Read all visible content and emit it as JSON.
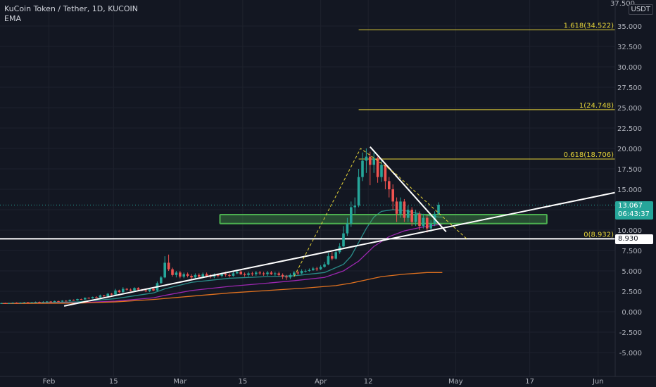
{
  "header": {
    "title": "KuCoin Token / Tether, 1D, KUCOIN",
    "indicator": "EMA",
    "currency": "USDT",
    "top_tick": "37.500"
  },
  "price_tag": {
    "price": "13.067",
    "countdown": "06:43:37"
  },
  "line_tag": "8.930",
  "colors": {
    "background": "#131722",
    "up": "#26a69a",
    "down": "#ef5350",
    "fib": "#e5d338",
    "trendline": "#ffffff",
    "zone": "#4caf50",
    "ema_fast": "#2a8d8a",
    "ema_mid": "#9c27b0",
    "ema_slow": "#e0711f"
  },
  "chart_data": {
    "type": "line",
    "title": "KuCoin Token / Tether, 1D, KUCOIN",
    "ylim": [
      -6.5,
      38
    ],
    "yticks": [
      "-5.000",
      "-2.500",
      "0.000",
      "2.500",
      "5.000",
      "7.500",
      "10.000",
      "12.500",
      "15.000",
      "17.500",
      "20.000",
      "22.500",
      "25.000",
      "27.500",
      "30.000",
      "32.500",
      "35.000"
    ],
    "xticks": [
      "Feb",
      "15",
      "Mar",
      "15",
      "Apr",
      "12",
      "May",
      "17",
      "Jun"
    ],
    "fib_levels": [
      {
        "label": "1.618(34.522)",
        "value": 34.522
      },
      {
        "label": "1(24.748)",
        "value": 24.748
      },
      {
        "label": "0.618(18.706)",
        "value": 18.706
      },
      {
        "label": "0(8.932)",
        "value": 8.932
      }
    ],
    "horizontal_line": 8.93,
    "zone": [
      10.8,
      11.9
    ],
    "last_price": 13.067,
    "candles": [
      [
        1.0,
        1.05,
        1.1,
        0.95
      ],
      [
        1.05,
        1.0,
        1.1,
        0.95
      ],
      [
        1.0,
        1.05,
        1.1,
        0.95
      ],
      [
        1.05,
        1.1,
        1.15,
        1.0
      ],
      [
        1.1,
        1.05,
        1.15,
        1.0
      ],
      [
        1.05,
        1.1,
        1.15,
        1.0
      ],
      [
        1.1,
        1.15,
        1.2,
        1.05
      ],
      [
        1.15,
        1.1,
        1.2,
        1.05
      ],
      [
        1.1,
        1.15,
        1.2,
        1.05
      ],
      [
        1.15,
        1.2,
        1.25,
        1.1
      ],
      [
        1.2,
        1.15,
        1.25,
        1.1
      ],
      [
        1.15,
        1.2,
        1.3,
        1.1
      ],
      [
        1.2,
        1.25,
        1.3,
        1.15
      ],
      [
        1.25,
        1.2,
        1.3,
        1.15
      ],
      [
        1.2,
        1.3,
        1.35,
        1.15
      ],
      [
        1.3,
        1.25,
        1.35,
        1.2
      ],
      [
        1.25,
        1.35,
        1.4,
        1.2
      ],
      [
        1.35,
        1.3,
        1.4,
        1.25
      ],
      [
        1.3,
        1.45,
        1.5,
        1.25
      ],
      [
        1.45,
        1.4,
        1.5,
        1.35
      ],
      [
        1.4,
        1.55,
        1.6,
        1.35
      ],
      [
        1.55,
        1.5,
        1.6,
        1.45
      ],
      [
        1.5,
        1.7,
        1.75,
        1.45
      ],
      [
        1.7,
        1.65,
        1.75,
        1.6
      ],
      [
        1.65,
        1.8,
        1.85,
        1.6
      ],
      [
        1.8,
        1.75,
        1.9,
        1.7
      ],
      [
        1.75,
        2.0,
        2.1,
        1.7
      ],
      [
        2.0,
        1.9,
        2.05,
        1.8
      ],
      [
        1.9,
        2.2,
        2.3,
        1.85
      ],
      [
        2.2,
        2.1,
        2.3,
        2.0
      ],
      [
        2.1,
        2.6,
        2.8,
        2.05
      ],
      [
        2.6,
        2.4,
        2.7,
        2.3
      ],
      [
        2.4,
        2.8,
        3.0,
        2.3
      ],
      [
        2.8,
        2.7,
        2.9,
        2.6
      ],
      [
        2.7,
        2.6,
        2.85,
        2.5
      ],
      [
        2.6,
        2.9,
        3.0,
        2.5
      ],
      [
        2.9,
        2.7,
        3.0,
        2.6
      ],
      [
        2.7,
        2.6,
        2.8,
        2.5
      ],
      [
        2.6,
        2.5,
        2.7,
        2.4
      ],
      [
        2.5,
        2.8,
        2.9,
        2.4
      ],
      [
        2.8,
        2.6,
        2.9,
        2.5
      ],
      [
        2.6,
        3.5,
        3.7,
        2.5
      ],
      [
        3.5,
        4.2,
        4.4,
        3.4
      ],
      [
        4.2,
        6.0,
        6.8,
        4.1
      ],
      [
        6.0,
        5.2,
        7.0,
        5.0
      ],
      [
        5.2,
        4.5,
        5.4,
        4.3
      ],
      [
        4.5,
        4.8,
        5.0,
        4.2
      ],
      [
        4.8,
        4.3,
        5.0,
        4.1
      ],
      [
        4.3,
        4.6,
        4.8,
        4.1
      ],
      [
        4.6,
        4.4,
        4.8,
        4.2
      ],
      [
        4.4,
        4.2,
        4.6,
        4.0
      ],
      [
        4.2,
        4.5,
        4.7,
        4.0
      ],
      [
        4.5,
        4.3,
        4.7,
        4.1
      ],
      [
        4.3,
        4.6,
        4.8,
        4.1
      ],
      [
        4.6,
        4.4,
        4.8,
        4.2
      ],
      [
        4.4,
        4.3,
        4.6,
        4.1
      ],
      [
        4.3,
        4.5,
        4.7,
        4.1
      ],
      [
        4.5,
        4.4,
        4.7,
        4.2
      ],
      [
        4.4,
        4.6,
        4.8,
        4.2
      ],
      [
        4.6,
        4.5,
        4.9,
        4.3
      ],
      [
        4.5,
        4.4,
        4.7,
        4.2
      ],
      [
        4.4,
        4.7,
        4.9,
        4.3
      ],
      [
        4.7,
        4.9,
        5.1,
        4.6
      ],
      [
        4.9,
        4.6,
        5.1,
        4.5
      ],
      [
        4.6,
        4.5,
        4.8,
        4.3
      ],
      [
        4.5,
        4.7,
        4.9,
        4.3
      ],
      [
        4.7,
        4.6,
        4.9,
        4.4
      ],
      [
        4.6,
        4.8,
        5.0,
        4.4
      ],
      [
        4.8,
        4.7,
        5.0,
        4.5
      ],
      [
        4.7,
        4.6,
        4.9,
        4.4
      ],
      [
        4.6,
        4.8,
        5.0,
        4.4
      ],
      [
        4.8,
        4.6,
        5.0,
        4.5
      ],
      [
        4.6,
        4.7,
        4.9,
        4.4
      ],
      [
        4.7,
        4.5,
        4.9,
        4.3
      ],
      [
        4.5,
        4.3,
        4.7,
        4.0
      ],
      [
        4.3,
        4.2,
        4.5,
        3.9
      ],
      [
        4.2,
        4.5,
        4.7,
        4.0
      ],
      [
        4.5,
        4.8,
        5.0,
        4.3
      ],
      [
        4.8,
        4.7,
        5.0,
        4.5
      ],
      [
        4.7,
        5.0,
        5.2,
        4.6
      ],
      [
        5.0,
        5.0,
        5.2,
        4.8
      ],
      [
        5.0,
        5.1,
        5.3,
        4.9
      ],
      [
        5.1,
        5.3,
        5.5,
        5.0
      ],
      [
        5.3,
        5.2,
        5.5,
        5.0
      ],
      [
        5.2,
        5.5,
        5.7,
        5.1
      ],
      [
        5.5,
        5.8,
        6.1,
        5.4
      ],
      [
        5.8,
        6.8,
        7.2,
        5.7
      ],
      [
        6.8,
        6.5,
        7.3,
        6.3
      ],
      [
        6.5,
        7.3,
        7.7,
        6.4
      ],
      [
        7.3,
        8.0,
        8.4,
        7.1
      ],
      [
        8.0,
        9.6,
        10.5,
        7.9
      ],
      [
        9.6,
        10.8,
        11.5,
        9.3
      ],
      [
        10.8,
        12.8,
        13.5,
        10.4
      ],
      [
        12.8,
        13.0,
        14.0,
        12.0
      ],
      [
        13.0,
        16.5,
        17.5,
        12.8
      ],
      [
        16.5,
        18.5,
        19.5,
        16.0
      ],
      [
        18.5,
        19.0,
        20.0,
        17.0
      ],
      [
        19.0,
        18.0,
        19.6,
        15.5
      ],
      [
        18.0,
        18.8,
        19.5,
        17.0
      ],
      [
        18.8,
        16.5,
        19.0,
        15.8
      ],
      [
        16.5,
        18.0,
        18.6,
        15.9
      ],
      [
        18.0,
        16.0,
        18.2,
        15.0
      ],
      [
        16.0,
        15.0,
        16.5,
        14.0
      ],
      [
        15.0,
        13.5,
        15.6,
        12.5
      ],
      [
        13.5,
        12.0,
        14.0,
        11.0
      ],
      [
        12.0,
        13.5,
        14.0,
        11.5
      ],
      [
        13.5,
        11.5,
        13.8,
        11.0
      ],
      [
        11.5,
        12.5,
        13.0,
        11.0
      ],
      [
        12.5,
        11.0,
        12.8,
        10.5
      ],
      [
        11.0,
        12.0,
        12.5,
        10.5
      ],
      [
        12.0,
        10.5,
        12.3,
        10.0
      ],
      [
        10.5,
        11.5,
        12.0,
        10.2
      ],
      [
        11.5,
        10.2,
        11.8,
        9.7
      ],
      [
        10.2,
        10.8,
        11.2,
        9.8
      ],
      [
        10.8,
        12.0,
        12.3,
        10.5
      ],
      [
        12.0,
        13.1,
        13.4,
        11.8
      ]
    ],
    "ema_fast": [
      [
        0,
        1.0
      ],
      [
        20,
        1.2
      ],
      [
        30,
        1.6
      ],
      [
        40,
        2.3
      ],
      [
        43,
        2.8
      ],
      [
        50,
        3.6
      ],
      [
        60,
        4.1
      ],
      [
        70,
        4.3
      ],
      [
        77,
        4.4
      ],
      [
        85,
        4.8
      ],
      [
        90,
        5.8
      ],
      [
        92,
        6.8
      ],
      [
        94,
        8.5
      ],
      [
        96,
        10.2
      ],
      [
        98,
        11.6
      ],
      [
        100,
        12.3
      ],
      [
        103,
        12.5
      ],
      [
        106,
        12.4
      ],
      [
        109,
        12.1
      ],
      [
        112,
        11.8
      ],
      [
        115,
        11.6
      ],
      [
        116,
        11.6
      ]
    ],
    "ema_mid": [
      [
        0,
        1.0
      ],
      [
        20,
        1.1
      ],
      [
        30,
        1.3
      ],
      [
        40,
        1.7
      ],
      [
        43,
        2.0
      ],
      [
        50,
        2.6
      ],
      [
        60,
        3.1
      ],
      [
        70,
        3.5
      ],
      [
        77,
        3.8
      ],
      [
        85,
        4.2
      ],
      [
        90,
        5.0
      ],
      [
        94,
        6.2
      ],
      [
        98,
        8.0
      ],
      [
        102,
        9.2
      ],
      [
        106,
        9.9
      ],
      [
        110,
        10.3
      ],
      [
        114,
        10.6
      ],
      [
        116,
        10.7
      ]
    ],
    "ema_slow": [
      [
        0,
        1.0
      ],
      [
        20,
        1.05
      ],
      [
        30,
        1.2
      ],
      [
        40,
        1.5
      ],
      [
        50,
        1.9
      ],
      [
        60,
        2.3
      ],
      [
        70,
        2.6
      ],
      [
        80,
        2.9
      ],
      [
        88,
        3.2
      ],
      [
        92,
        3.5
      ],
      [
        96,
        3.9
      ],
      [
        100,
        4.3
      ],
      [
        106,
        4.6
      ],
      [
        112,
        4.8
      ],
      [
        116,
        4.8
      ]
    ]
  }
}
